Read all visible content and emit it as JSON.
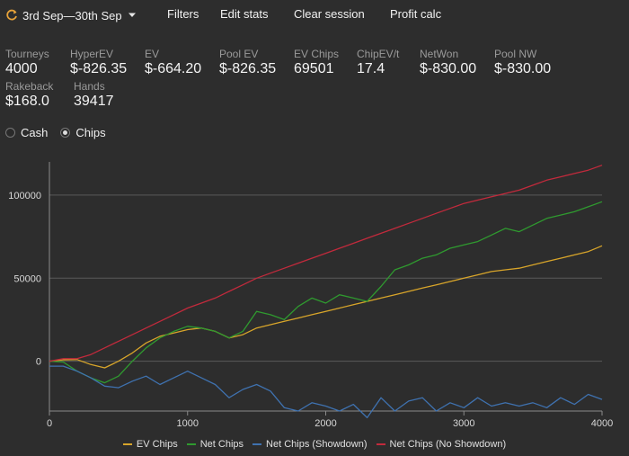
{
  "toolbar": {
    "date_range": "3rd Sep—30th Sep",
    "filters": "Filters",
    "edit_stats": "Edit stats",
    "clear_session": "Clear session",
    "profit_calc": "Profit calc"
  },
  "stats": [
    {
      "label": "Tourneys",
      "value": "4000"
    },
    {
      "label": "HyperEV",
      "value": "$-826.35"
    },
    {
      "label": "EV",
      "value": "$-664.20"
    },
    {
      "label": "Pool EV",
      "value": "$-826.35"
    },
    {
      "label": "EV Chips",
      "value": "69501"
    },
    {
      "label": "ChipEV/t",
      "value": "17.4"
    },
    {
      "label": "NetWon",
      "value": "$-830.00"
    },
    {
      "label": "Pool NW",
      "value": "$-830.00"
    },
    {
      "label": "Rakeback",
      "value": "$168.0"
    },
    {
      "label": "Hands",
      "value": "39417"
    }
  ],
  "mode": {
    "cash_label": "Cash",
    "chips_label": "Chips",
    "selected": "chips"
  },
  "colors": {
    "background": "#2d2d2d",
    "grid": "#5a5a5a",
    "ev_chips": "#d8a52a",
    "net_chips": "#2f9a2f",
    "showdown": "#3f72b0",
    "no_showdown": "#c22a3c"
  },
  "chart_data": {
    "type": "line",
    "xlim": [
      0,
      4000
    ],
    "ylim": [
      -30000,
      120000
    ],
    "xticks": [
      0,
      1000,
      2000,
      3000,
      4000
    ],
    "yticks": [
      0,
      50000,
      100000
    ],
    "grid": "horizontal",
    "legend": "bottom",
    "series": [
      {
        "name": "EV Chips",
        "color": "#d8a52a",
        "x": [
          0,
          100,
          200,
          300,
          400,
          500,
          600,
          700,
          800,
          900,
          1000,
          1100,
          1200,
          1300,
          1400,
          1500,
          1600,
          1700,
          1800,
          1900,
          2000,
          2100,
          2200,
          2300,
          2400,
          2500,
          2600,
          2700,
          2800,
          2900,
          3000,
          3100,
          3200,
          3300,
          3400,
          3500,
          3600,
          3700,
          3800,
          3900,
          4000
        ],
        "y": [
          0,
          800,
          1000,
          -2000,
          -4000,
          0,
          5000,
          11000,
          15000,
          17000,
          19000,
          20000,
          18000,
          14000,
          16000,
          20000,
          22000,
          24000,
          26000,
          28000,
          30000,
          32000,
          34000,
          36000,
          38000,
          40000,
          42000,
          44000,
          46000,
          48000,
          50000,
          52000,
          54000,
          55000,
          56000,
          58000,
          60000,
          62000,
          64000,
          66000,
          69500
        ]
      },
      {
        "name": "Net Chips",
        "color": "#2f9a2f",
        "x": [
          0,
          100,
          200,
          300,
          400,
          500,
          600,
          700,
          800,
          900,
          1000,
          1100,
          1200,
          1300,
          1400,
          1500,
          1600,
          1700,
          1800,
          1900,
          2000,
          2100,
          2200,
          2300,
          2400,
          2500,
          2600,
          2700,
          2800,
          2900,
          3000,
          3100,
          3200,
          3300,
          3400,
          3500,
          3600,
          3700,
          3800,
          3900,
          4000
        ],
        "y": [
          0,
          -500,
          -6000,
          -10000,
          -13000,
          -9000,
          0,
          8000,
          14000,
          18000,
          21000,
          20000,
          18000,
          14000,
          18000,
          30000,
          28000,
          25000,
          33000,
          38000,
          35000,
          40000,
          38000,
          36000,
          45000,
          55000,
          58000,
          62000,
          64000,
          68000,
          70000,
          72000,
          76000,
          80000,
          78000,
          82000,
          86000,
          88000,
          90000,
          93000,
          96000
        ]
      },
      {
        "name": "Net Chips (Showdown)",
        "color": "#3f72b0",
        "x": [
          0,
          100,
          200,
          300,
          400,
          500,
          600,
          700,
          800,
          900,
          1000,
          1100,
          1200,
          1300,
          1400,
          1500,
          1600,
          1700,
          1800,
          1900,
          2000,
          2100,
          2200,
          2300,
          2400,
          2500,
          2600,
          2700,
          2800,
          2900,
          3000,
          3100,
          3200,
          3300,
          3400,
          3500,
          3600,
          3700,
          3800,
          3900,
          4000
        ],
        "y": [
          -3000,
          -3000,
          -6000,
          -10000,
          -15000,
          -16000,
          -12000,
          -9000,
          -14000,
          -10000,
          -6000,
          -10000,
          -14000,
          -22000,
          -17000,
          -14000,
          -18000,
          -28000,
          -30000,
          -25000,
          -27000,
          -30000,
          -26000,
          -34000,
          -22000,
          -30000,
          -24000,
          -22000,
          -30000,
          -25000,
          -28000,
          -22000,
          -27000,
          -25000,
          -27000,
          -25000,
          -28000,
          -22000,
          -26000,
          -20000,
          -23000
        ]
      },
      {
        "name": "Net Chips (No Showdown)",
        "color": "#c22a3c",
        "x": [
          0,
          100,
          200,
          300,
          400,
          500,
          600,
          700,
          800,
          900,
          1000,
          1100,
          1200,
          1300,
          1400,
          1500,
          1600,
          1700,
          1800,
          1900,
          2000,
          2100,
          2200,
          2300,
          2400,
          2500,
          2600,
          2700,
          2800,
          2900,
          3000,
          3100,
          3200,
          3300,
          3400,
          3500,
          3600,
          3700,
          3800,
          3900,
          4000
        ],
        "y": [
          0,
          1500,
          1500,
          4000,
          8000,
          12000,
          16000,
          20000,
          24000,
          28000,
          32000,
          35000,
          38000,
          42000,
          46000,
          50000,
          53000,
          56000,
          59000,
          62000,
          65000,
          68000,
          71000,
          74000,
          77000,
          80000,
          83000,
          86000,
          89000,
          92000,
          95000,
          97000,
          99000,
          101000,
          103000,
          106000,
          109000,
          111000,
          113000,
          115000,
          118000
        ]
      }
    ]
  }
}
